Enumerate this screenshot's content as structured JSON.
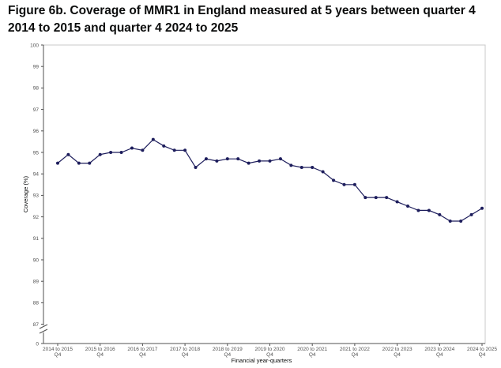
{
  "chart_data": {
    "type": "line",
    "title": "Figure 6b. Coverage of MMR1 in England measured at 5 years between quarter 4 2014 to 2015 and quarter 4 2024 to 2025",
    "xlabel": "Financial year-quarters",
    "ylabel": "Coverage (%)",
    "ylim": [
      87,
      100
    ],
    "y_ticks": [
      100,
      99,
      98,
      97,
      96,
      95,
      94,
      93,
      92,
      91,
      90,
      89,
      88,
      87,
      0
    ],
    "axis_break": true,
    "grid": false,
    "x_tick_labels": [
      {
        "year": "2014 to 2015",
        "quarter": "Q4"
      },
      {
        "year": "2015 to 2016",
        "quarter": "Q4"
      },
      {
        "year": "2016 to 2017",
        "quarter": "Q4"
      },
      {
        "year": "2017 to 2018",
        "quarter": "Q4"
      },
      {
        "year": "2018 to 2019",
        "quarter": "Q4"
      },
      {
        "year": "2019 to 2020",
        "quarter": "Q4"
      },
      {
        "year": "2020 to 2021",
        "quarter": "Q4"
      },
      {
        "year": "2021 to 2022",
        "quarter": "Q4"
      },
      {
        "year": "2022 to 2023",
        "quarter": "Q4"
      },
      {
        "year": "2023 to 2024",
        "quarter": "Q4"
      },
      {
        "year": "2024 to 2025",
        "quarter": "Q4"
      }
    ],
    "series": [
      {
        "color": "#1d1d5c",
        "values": [
          94.5,
          94.9,
          94.5,
          94.5,
          94.9,
          95.0,
          95.0,
          95.2,
          95.1,
          95.6,
          95.3,
          95.1,
          95.1,
          94.3,
          94.7,
          94.6,
          94.7,
          94.7,
          94.5,
          94.6,
          94.6,
          94.7,
          94.4,
          94.3,
          94.3,
          94.1,
          93.7,
          93.5,
          93.5,
          92.9,
          92.9,
          92.9,
          92.7,
          92.5,
          92.3,
          92.3,
          92.1,
          91.8,
          91.8,
          92.1,
          92.4
        ]
      }
    ]
  }
}
